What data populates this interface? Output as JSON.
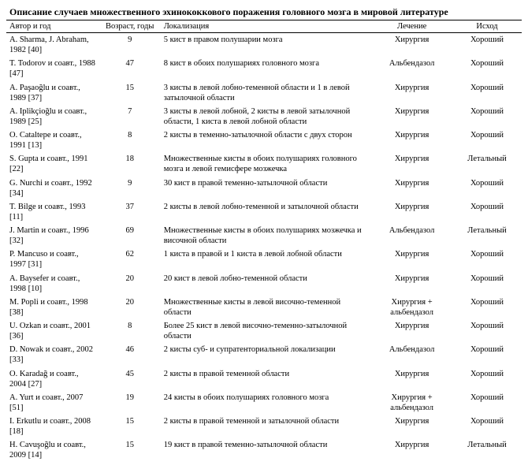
{
  "title": "Описание случаев множественного эхинококкового поражения головного мозга в мировой литературе",
  "columns": [
    "Автор и год",
    "Возраст, годы",
    "Локализация",
    "Лечение",
    "Исход"
  ],
  "rows": [
    {
      "author": "A. Sharma, J. Abraham, 1982 [40]",
      "age": "9",
      "loc": "5 кист в правом полушарии мозга",
      "treat": "Хирургия",
      "out": "Хороший"
    },
    {
      "author": "T. Todorov  и соавт., 1988 [47]",
      "age": "47",
      "loc": "8 кист в обоих полушариях головного мозга",
      "treat": "Альбендазол",
      "out": "Хороший"
    },
    {
      "author": "A. Paşaoğlu и соавт., 1989 [37]",
      "age": "15",
      "loc": "3 кисты в левой лобно-теменной области и 1 в левой затылочной области",
      "treat": "Хирургия",
      "out": "Хороший"
    },
    {
      "author": "A. Iplikçioğlu и соавт., 1989 [25]",
      "age": "7",
      "loc": "3 кисты в левой лобной, 2 кисты в левой затылочной области, 1 киста в левой лобной области",
      "treat": "Хирургия",
      "out": "Хороший"
    },
    {
      "author": "O. Cataltepe и соавт., 1991 [13]",
      "age": "8",
      "loc": "2 кисты в теменно-затылочной области с двух сторон",
      "treat": "Хирургия",
      "out": "Хороший"
    },
    {
      "author": "S. Gupta и соавт., 1991 [22]",
      "age": "18",
      "loc": "Множественные кисты в обоих полушариях головного мозга и левой гемисфере мозжечка",
      "treat": "Хирургия",
      "out": "Летальный"
    },
    {
      "author": "G. Nurchi и соавт., 1992 [34]",
      "age": "9",
      "loc": "30 кист в правой теменно-затылочной области",
      "treat": "Хирургия",
      "out": "Хороший"
    },
    {
      "author": "T. Bilge и соавт., 1993 [11]",
      "age": "37",
      "loc": "2 кисты в левой лобно-теменной и затылочной области",
      "treat": "Хирургия",
      "out": "Хороший"
    },
    {
      "author": "J. Martin и соавт., 1996 [32]",
      "age": "69",
      "loc": "Множественные кисты в обоих полушариях мозжечка и височной области",
      "treat": "Альбендазол",
      "out": "Летальный"
    },
    {
      "author": "P. Mancuso и соавт., 1997 [31]",
      "age": "62",
      "loc": "1 киста в правой и 1 киста в левой лобной области",
      "treat": "Хирургия",
      "out": "Хороший"
    },
    {
      "author": "A. Baysefer и соавт., 1998 [10]",
      "age": "20",
      "loc": "20 кист в левой лобно-теменной области",
      "treat": "Хирургия",
      "out": "Хороший"
    },
    {
      "author": "M. Popli и соавт., 1998 [38]",
      "age": "20",
      "loc": "Множественные кисты в левой височно-теменной области",
      "treat": "Хирургия + альбендазол",
      "out": "Хороший"
    },
    {
      "author": "U. Ozkan и соавт., 2001 [36]",
      "age": "8",
      "loc": "Более 25 кист в левой височно-теменно-затылочной области",
      "treat": "Хирургия",
      "out": "Хороший"
    },
    {
      "author": "D. Nowak и соавт., 2002 [33]",
      "age": "46",
      "loc": "2 кисты суб-  и супратенториальной локализации",
      "treat": "Альбендазол",
      "out": "Хороший"
    },
    {
      "author": "O. Karadağ и соавт., 2004 [27]",
      "age": "45",
      "loc": "2 кисты в правой теменной области",
      "treat": "Хирургия",
      "out": "Хороший"
    },
    {
      "author": "A. Yurt и соавт., 2007 [51]",
      "age": "19",
      "loc": "24 кисты в обоих полушариях головного мозга",
      "treat": "Хирургия + альбендазол",
      "out": "Хороший"
    },
    {
      "author": "I. Erkutlu и соавт., 2008 [18]",
      "age": "15",
      "loc": "2 кисты в правой теменной и затылочной области",
      "treat": "Хирургия",
      "out": "Хороший"
    },
    {
      "author": "H. Cavuşoğlu и соавт., 2009 [14]",
      "age": "15",
      "loc": "19 кист в правой теменно-затылочной области",
      "treat": "Хирургия",
      "out": "Летальный"
    }
  ]
}
